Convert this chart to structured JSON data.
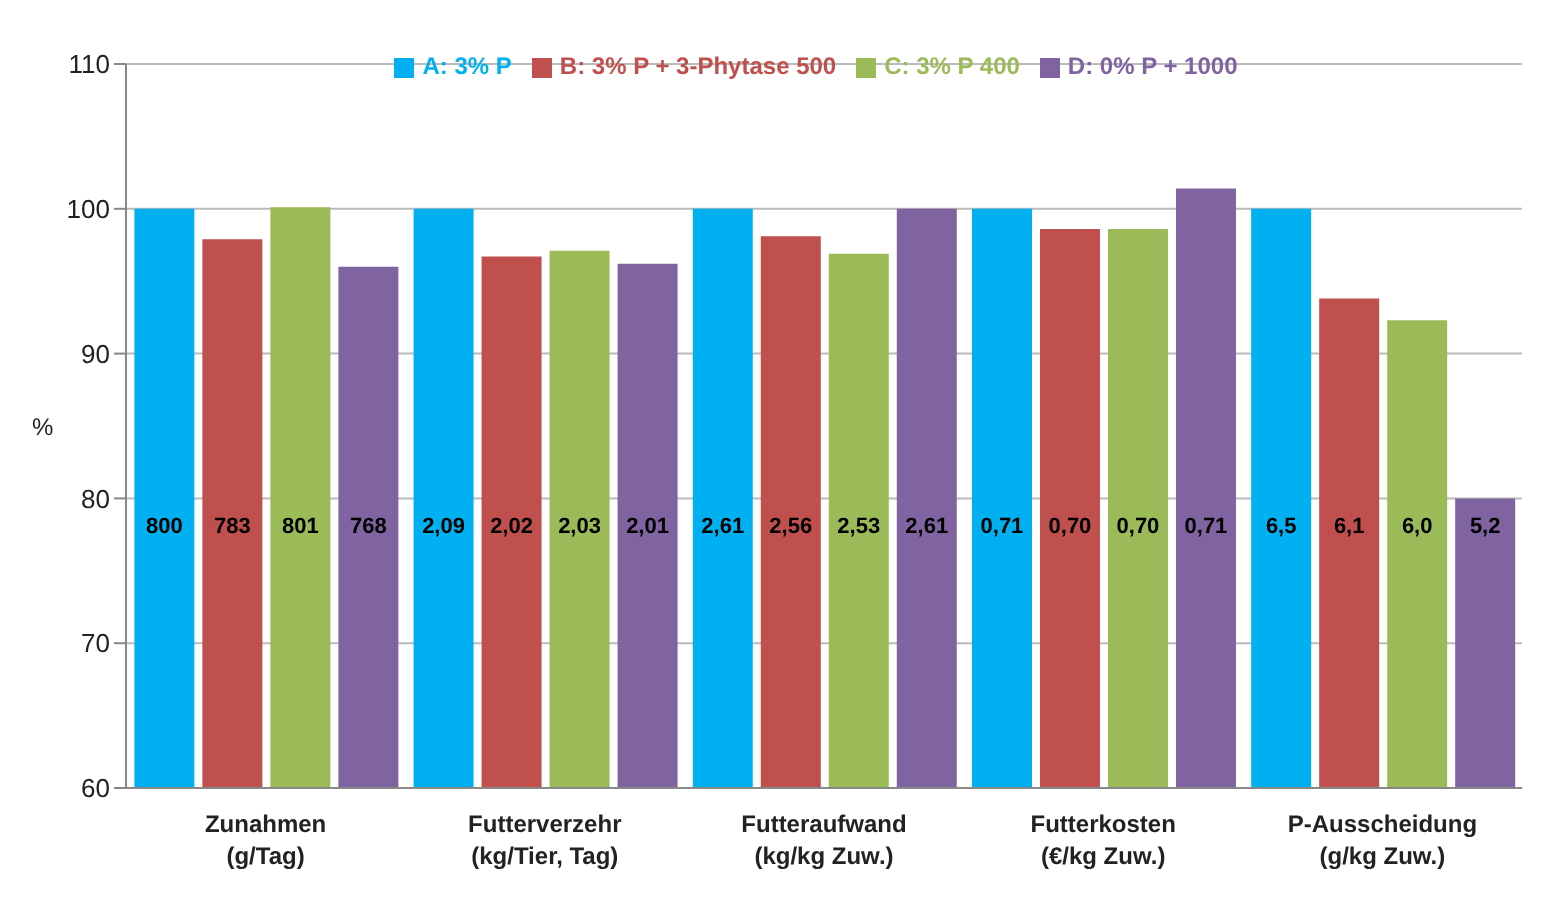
{
  "chart_data": {
    "type": "bar",
    "ylabel": "%",
    "categories": [
      "Zunahmen\n(g/Tag)",
      "Futterverzehr\n(kg/Tier, Tag)",
      "Futteraufwand\n(kg/kg Zuw.)",
      "Futterkosten\n(€/kg Zuw.)",
      "P-Ausscheidung\n(g/kg Zuw.)"
    ],
    "series": [
      {
        "name": "A: 3% P",
        "color": "#00b0f0",
        "values": [
          100,
          100,
          100,
          100,
          100
        ]
      },
      {
        "name": "B: 3% P + 3-Phytase 500",
        "color": "#c0504d",
        "values": [
          97.9,
          96.7,
          98.1,
          98.6,
          93.8
        ]
      },
      {
        "name": "C: 3% P 400",
        "color": "#9bbb59",
        "values": [
          100.1,
          97.1,
          96.9,
          98.6,
          92.3
        ]
      },
      {
        "name": "D: 0% P + 1000",
        "color": "#8064a2",
        "values": [
          96,
          96.2,
          100,
          101.4,
          80
        ]
      }
    ],
    "annotations": [
      "800",
      "783",
      "801",
      "768",
      "2,09",
      "2,02",
      "2,03",
      "2,01",
      "2,61",
      "2,56",
      "2,53",
      "2,61",
      "0,71",
      "0,70",
      "0,70",
      "0,71",
      "6,5",
      "6,1",
      "6,0",
      "5,2"
    ],
    "ylim": [
      60,
      110
    ],
    "yticks": [
      60,
      70,
      80,
      90,
      100,
      110
    ],
    "grid": "y",
    "legend": "top"
  }
}
